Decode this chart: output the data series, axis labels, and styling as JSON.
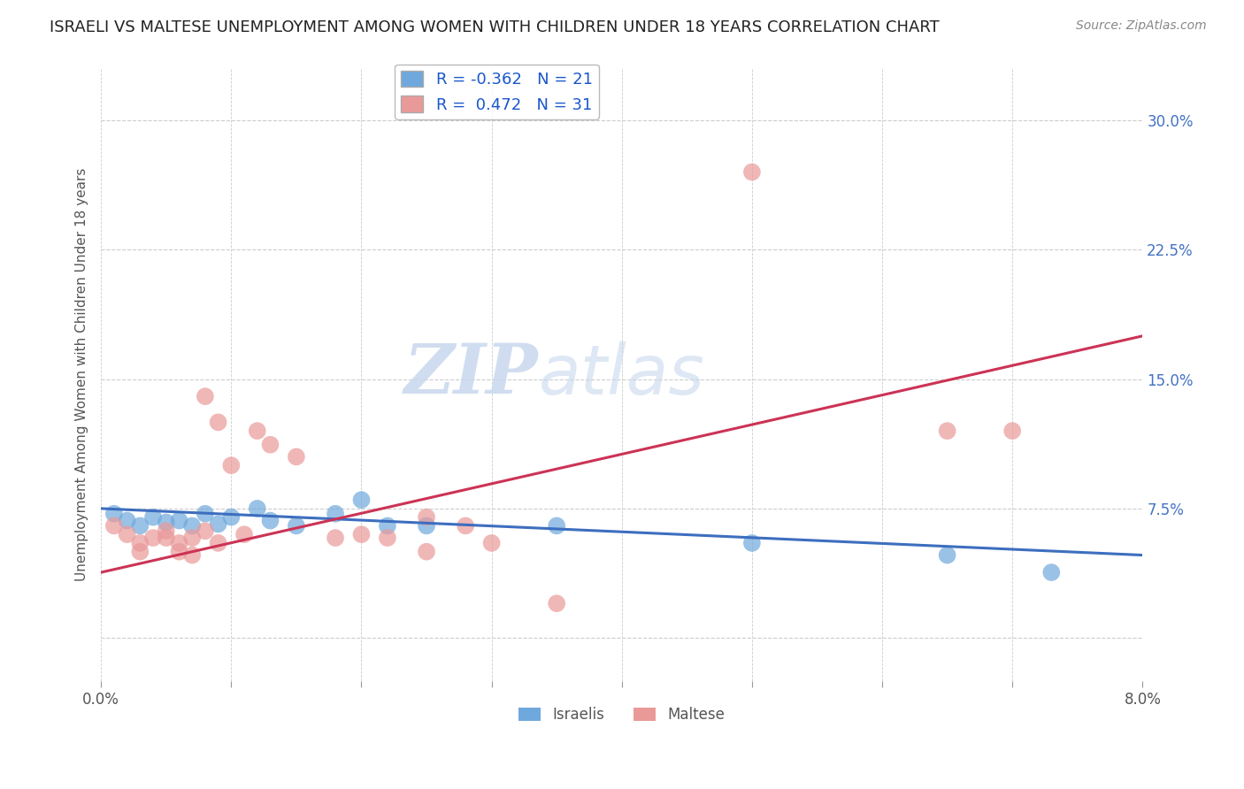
{
  "title": "ISRAELI VS MALTESE UNEMPLOYMENT AMONG WOMEN WITH CHILDREN UNDER 18 YEARS CORRELATION CHART",
  "source": "Source: ZipAtlas.com",
  "ylabel": "Unemployment Among Women with Children Under 18 years",
  "watermark_zip": "ZIP",
  "watermark_atlas": "atlas",
  "legend_r_israeli": "-0.362",
  "legend_n_israeli": "21",
  "legend_r_maltese": "0.472",
  "legend_n_maltese": "31",
  "color_israeli": "#6fa8dc",
  "color_maltese": "#ea9999",
  "color_trendline_israeli": "#3d6ebf",
  "color_trendline_maltese": "#cc3355",
  "right_yticks": [
    0.0,
    0.075,
    0.15,
    0.225,
    0.3
  ],
  "right_yticklabels": [
    "",
    "7.5%",
    "15.0%",
    "22.5%",
    "30.0%"
  ],
  "xlim": [
    0.0,
    0.08
  ],
  "ylim": [
    -0.025,
    0.33
  ],
  "israelis_x": [
    0.001,
    0.002,
    0.003,
    0.004,
    0.005,
    0.006,
    0.007,
    0.008,
    0.009,
    0.01,
    0.012,
    0.013,
    0.015,
    0.018,
    0.02,
    0.022,
    0.025,
    0.035,
    0.05,
    0.065,
    0.073
  ],
  "israelis_y": [
    0.072,
    0.068,
    0.065,
    0.07,
    0.067,
    0.068,
    0.065,
    0.072,
    0.066,
    0.07,
    0.075,
    0.068,
    0.065,
    0.072,
    0.08,
    0.065,
    0.065,
    0.065,
    0.055,
    0.048,
    0.038
  ],
  "maltese_x": [
    0.001,
    0.002,
    0.003,
    0.003,
    0.004,
    0.005,
    0.005,
    0.006,
    0.006,
    0.007,
    0.007,
    0.008,
    0.008,
    0.009,
    0.009,
    0.01,
    0.011,
    0.012,
    0.013,
    0.015,
    0.018,
    0.02,
    0.022,
    0.025,
    0.025,
    0.028,
    0.03,
    0.035,
    0.05,
    0.065,
    0.07
  ],
  "maltese_y": [
    0.065,
    0.06,
    0.055,
    0.05,
    0.058,
    0.062,
    0.058,
    0.055,
    0.05,
    0.058,
    0.048,
    0.062,
    0.14,
    0.125,
    0.055,
    0.1,
    0.06,
    0.12,
    0.112,
    0.105,
    0.058,
    0.06,
    0.058,
    0.07,
    0.05,
    0.065,
    0.055,
    0.02,
    0.27,
    0.12,
    0.12
  ],
  "background_color": "#ffffff",
  "grid_color": "#cccccc",
  "isr_trend_x0": 0.0,
  "isr_trend_y0": 0.075,
  "isr_trend_x1": 0.08,
  "isr_trend_y1": 0.048,
  "mlt_trend_x0": 0.0,
  "mlt_trend_y0": 0.038,
  "mlt_trend_x1": 0.08,
  "mlt_trend_y1": 0.175
}
